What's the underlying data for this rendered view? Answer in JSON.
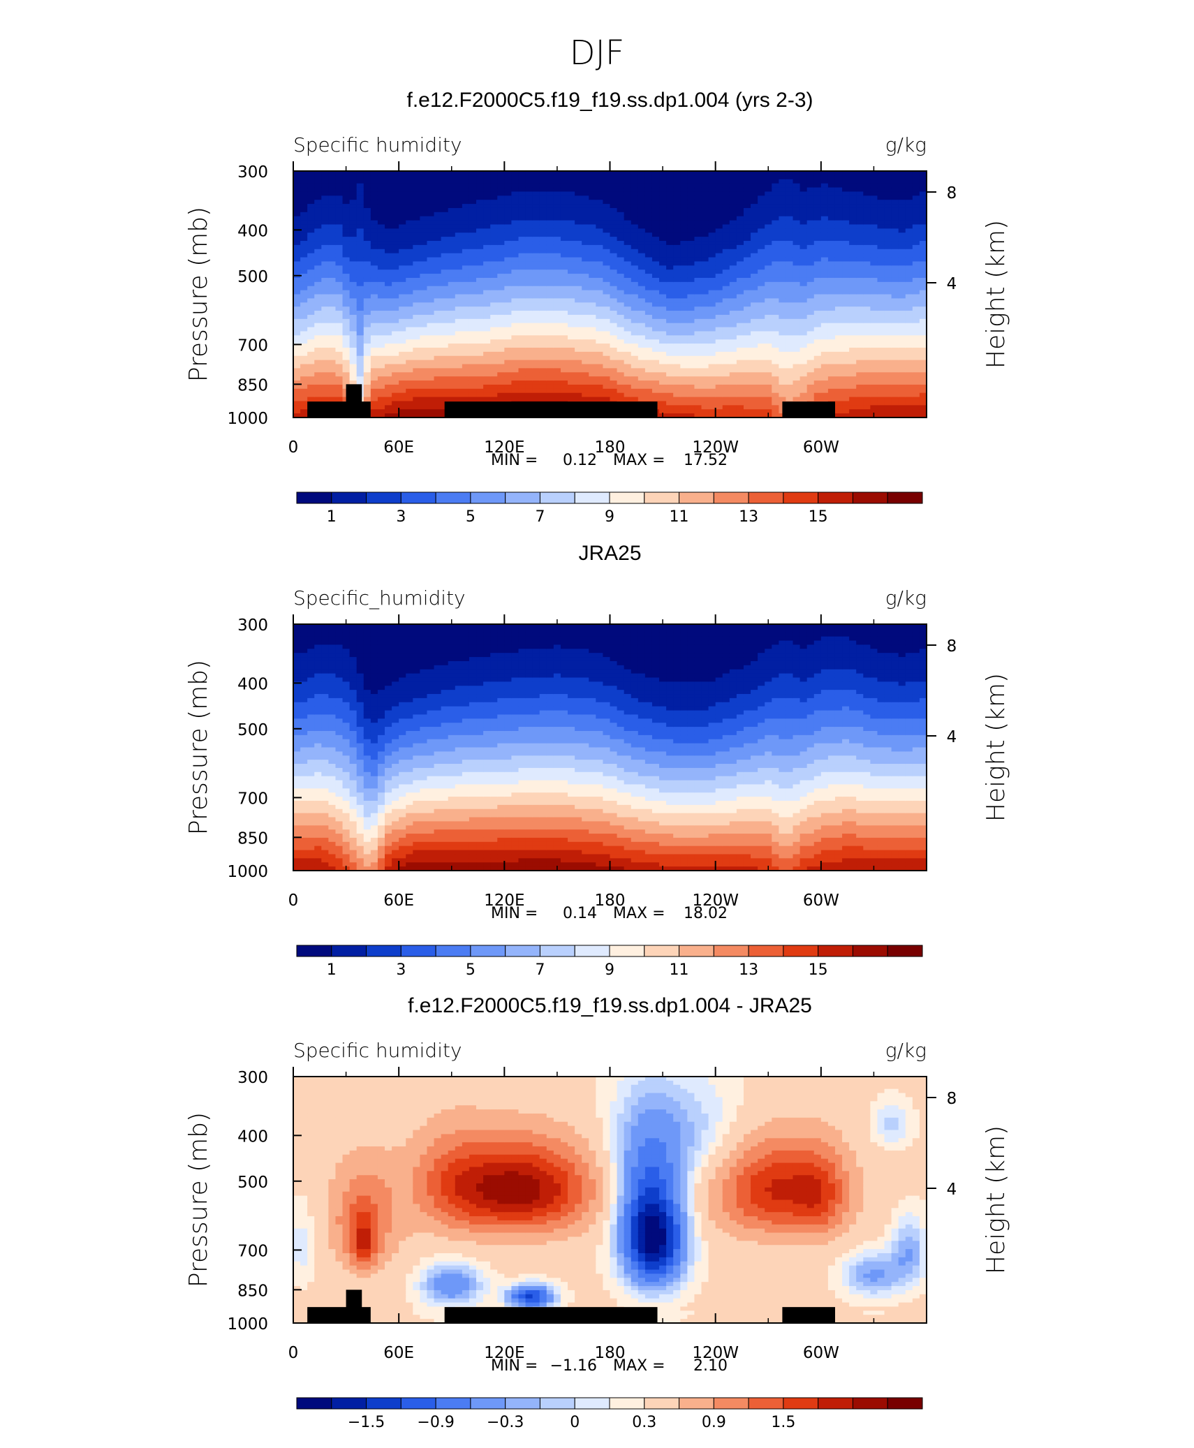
{
  "figure": {
    "title": "DJF"
  },
  "colors": {
    "ramp": [
      "#000a7d",
      "#011fa3",
      "#0e3ecb",
      "#2a5ee8",
      "#4b7cf3",
      "#6e98f8",
      "#94b4fb",
      "#b9d0fd",
      "#dfeafe",
      "#fff0e0",
      "#fdd4b8",
      "#f9b08c",
      "#f48a62",
      "#ec6036",
      "#e03b12",
      "#c01e06",
      "#9b0c01",
      "#780000"
    ],
    "land": "#000000",
    "axis": "#000000"
  },
  "chart_data": [
    {
      "type": "heatmap",
      "title": "f.e12.F2000C5.f19_f19.ss.dp1.004 (yrs 2-3)",
      "left_label": "Specific humidity",
      "right_label": "g/kg",
      "ylabel": "Pressure (mb)",
      "ylabel_right": "Height (km)",
      "yticks": [
        "300",
        "400",
        "500",
        "700",
        "850",
        "1000"
      ],
      "yticks_right": [
        "8",
        "4"
      ],
      "xticks": [
        "0",
        "60E",
        "120E",
        "180",
        "120W",
        "60W"
      ],
      "stats": {
        "min_label": "MIN =",
        "min": "0.12",
        "max_label": "MAX =",
        "max": "17.52"
      },
      "colorbar_ticks": [
        "1",
        "3",
        "5",
        "7",
        "9",
        "11",
        "13",
        "15"
      ],
      "colorbar_levels": [
        0,
        1,
        2,
        3,
        4,
        5,
        6,
        7,
        8,
        9,
        10,
        11,
        12,
        13,
        14,
        15,
        16,
        17
      ],
      "xlim": [
        0,
        360
      ],
      "ylim": [
        1000,
        300
      ],
      "topography": [
        [
          8,
          44,
          925
        ],
        [
          30,
          39,
          850
        ],
        [
          86,
          207,
          925
        ],
        [
          278,
          308,
          925
        ]
      ],
      "profile": {
        "lon": [
          0,
          15,
          25,
          32,
          38,
          44,
          55,
          70,
          90,
          110,
          130,
          150,
          175,
          195,
          215,
          235,
          255,
          270,
          280,
          290,
          300,
          315,
          330,
          345,
          360
        ],
        "top": [
          380,
          340,
          335,
          360,
          320,
          380,
          400,
          380,
          360,
          345,
          330,
          330,
          345,
          390,
          430,
          410,
          370,
          330,
          305,
          330,
          320,
          330,
          340,
          350,
          330
        ],
        "base": [
          15.5,
          16,
          16,
          14,
          10,
          15.5,
          16.5,
          17,
          17,
          17,
          17.5,
          17.5,
          17,
          16,
          15.5,
          15,
          15,
          14.5,
          13,
          14,
          15,
          15.5,
          16,
          16,
          16
        ]
      }
    },
    {
      "type": "heatmap",
      "title": "JRA25",
      "left_label": "Specific_humidity",
      "right_label": "g/kg",
      "ylabel": "Pressure (mb)",
      "ylabel_right": "Height (km)",
      "yticks": [
        "300",
        "400",
        "500",
        "700",
        "850",
        "1000"
      ],
      "yticks_right": [
        "8",
        "4"
      ],
      "xticks": [
        "0",
        "60E",
        "120E",
        "180",
        "120W",
        "60W"
      ],
      "stats": {
        "min_label": "MIN =",
        "min": "0.14",
        "max_label": "MAX =",
        "max": "18.02"
      },
      "colorbar_ticks": [
        "1",
        "3",
        "5",
        "7",
        "9",
        "11",
        "13",
        "15"
      ],
      "colorbar_levels": [
        0,
        1,
        2,
        3,
        4,
        5,
        6,
        7,
        8,
        9,
        10,
        11,
        12,
        13,
        14,
        15,
        16,
        17
      ],
      "xlim": [
        0,
        360
      ],
      "ylim": [
        1000,
        300
      ],
      "topography": [],
      "profile": {
        "lon": [
          0,
          15,
          25,
          32,
          38,
          44,
          55,
          70,
          90,
          110,
          130,
          150,
          175,
          195,
          215,
          235,
          255,
          270,
          280,
          290,
          300,
          315,
          330,
          345,
          360
        ],
        "top": [
          350,
          330,
          330,
          340,
          380,
          430,
          400,
          380,
          360,
          350,
          340,
          335,
          345,
          380,
          400,
          400,
          370,
          340,
          320,
          340,
          320,
          320,
          340,
          350,
          340
        ],
        "base": [
          16,
          16,
          15,
          14,
          13,
          12,
          16,
          17,
          17,
          17,
          17,
          17,
          16.5,
          16,
          15.5,
          15.5,
          15.5,
          15,
          13.5,
          15,
          15.5,
          16,
          16,
          16,
          16
        ]
      }
    },
    {
      "type": "heatmap",
      "title": "f.e12.F2000C5.f19_f19.ss.dp1.004 - JRA25",
      "left_label": "Specific humidity",
      "right_label": "g/kg",
      "ylabel": "Pressure (mb)",
      "ylabel_right": "Height (km)",
      "yticks": [
        "300",
        "400",
        "500",
        "700",
        "850",
        "1000"
      ],
      "yticks_right": [
        "8",
        "4"
      ],
      "xticks": [
        "0",
        "60E",
        "120E",
        "180",
        "120W",
        "60W"
      ],
      "stats": {
        "min_label": "MIN =",
        "min": "−1.16",
        "max_label": "MAX =",
        "max": "2.10"
      },
      "colorbar_ticks": [
        "−1.5",
        "−0.9",
        "−0.3",
        "0",
        "0.3",
        "0.9",
        "1.5"
      ],
      "colorbar_levels": [
        -2.1,
        -1.8,
        -1.5,
        -1.2,
        -0.9,
        -0.6,
        -0.3,
        -0.15,
        0,
        0.15,
        0.3,
        0.6,
        0.9,
        1.2,
        1.5,
        1.8,
        2.1,
        2.4
      ],
      "xlim": [
        0,
        360
      ],
      "ylim": [
        1000,
        300
      ],
      "topography": [
        [
          8,
          44,
          925
        ],
        [
          30,
          39,
          850
        ],
        [
          86,
          207,
          925
        ],
        [
          278,
          308,
          925
        ]
      ],
      "blobs": [
        {
          "lon": 40,
          "p": 600,
          "amp": 0.9,
          "slon": 14,
          "sp": 110
        },
        {
          "lon": 40,
          "p": 680,
          "amp": 0.9,
          "slon": 5,
          "sp": 60
        },
        {
          "lon": 130,
          "p": 520,
          "amp": 1.9,
          "slon": 28,
          "sp": 80
        },
        {
          "lon": 90,
          "p": 500,
          "amp": 0.7,
          "slon": 18,
          "sp": 90
        },
        {
          "lon": 275,
          "p": 520,
          "amp": 1.5,
          "slon": 25,
          "sp": 85
        },
        {
          "lon": 300,
          "p": 540,
          "amp": 0.6,
          "slon": 10,
          "sp": 80
        },
        {
          "lon": 205,
          "p": 670,
          "amp": -2.2,
          "slon": 12,
          "sp": 110
        },
        {
          "lon": 200,
          "p": 500,
          "amp": -0.7,
          "slon": 14,
          "sp": 120
        },
        {
          "lon": 222,
          "p": 400,
          "amp": -0.5,
          "slon": 25,
          "sp": 80
        },
        {
          "lon": 135,
          "p": 880,
          "amp": -1.6,
          "slon": 9,
          "sp": 35
        },
        {
          "lon": 350,
          "p": 700,
          "amp": -0.6,
          "slon": 7,
          "sp": 80
        },
        {
          "lon": 5,
          "p": 680,
          "amp": -0.3,
          "slon": 6,
          "sp": 90
        },
        {
          "lon": 340,
          "p": 380,
          "amp": -0.4,
          "slon": 8,
          "sp": 30
        },
        {
          "lon": 90,
          "p": 830,
          "amp": -0.9,
          "slon": 12,
          "sp": 60
        },
        {
          "lon": 330,
          "p": 790,
          "amp": -0.7,
          "slon": 12,
          "sp": 60
        }
      ]
    }
  ]
}
